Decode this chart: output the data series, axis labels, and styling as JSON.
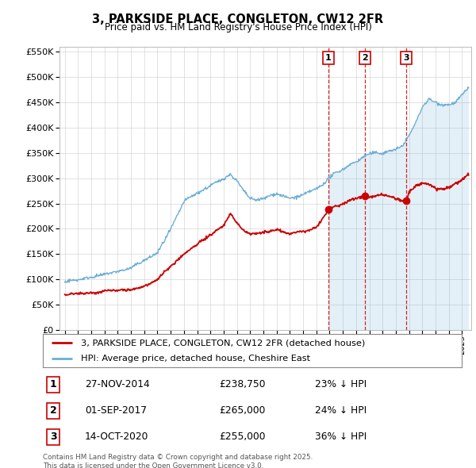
{
  "title": "3, PARKSIDE PLACE, CONGLETON, CW12 2FR",
  "subtitle": "Price paid vs. HM Land Registry's House Price Index (HPI)",
  "ylim": [
    0,
    560000
  ],
  "yticks": [
    0,
    50000,
    100000,
    150000,
    200000,
    250000,
    300000,
    350000,
    400000,
    450000,
    500000,
    550000
  ],
  "xlim_start": 1994.6,
  "xlim_end": 2025.7,
  "transactions": [
    {
      "label": "1",
      "date": "27-NOV-2014",
      "price": 238750,
      "pct": "23%",
      "x": 2014.91
    },
    {
      "label": "2",
      "date": "01-SEP-2017",
      "price": 265000,
      "pct": "24%",
      "x": 2017.67
    },
    {
      "label": "3",
      "date": "14-OCT-2020",
      "price": 255000,
      "pct": "36%",
      "x": 2020.79
    }
  ],
  "legend_entries": [
    "3, PARKSIDE PLACE, CONGLETON, CW12 2FR (detached house)",
    "HPI: Average price, detached house, Cheshire East"
  ],
  "footer": "Contains HM Land Registry data © Crown copyright and database right 2025.\nThis data is licensed under the Open Government Licence v3.0.",
  "hpi_color": "#6baed6",
  "hpi_fill_color": "#ddeeff",
  "price_color": "#cc0000",
  "vline_color": "#cc0000",
  "plot_bg": "#ffffff",
  "grid_color": "#cccccc"
}
